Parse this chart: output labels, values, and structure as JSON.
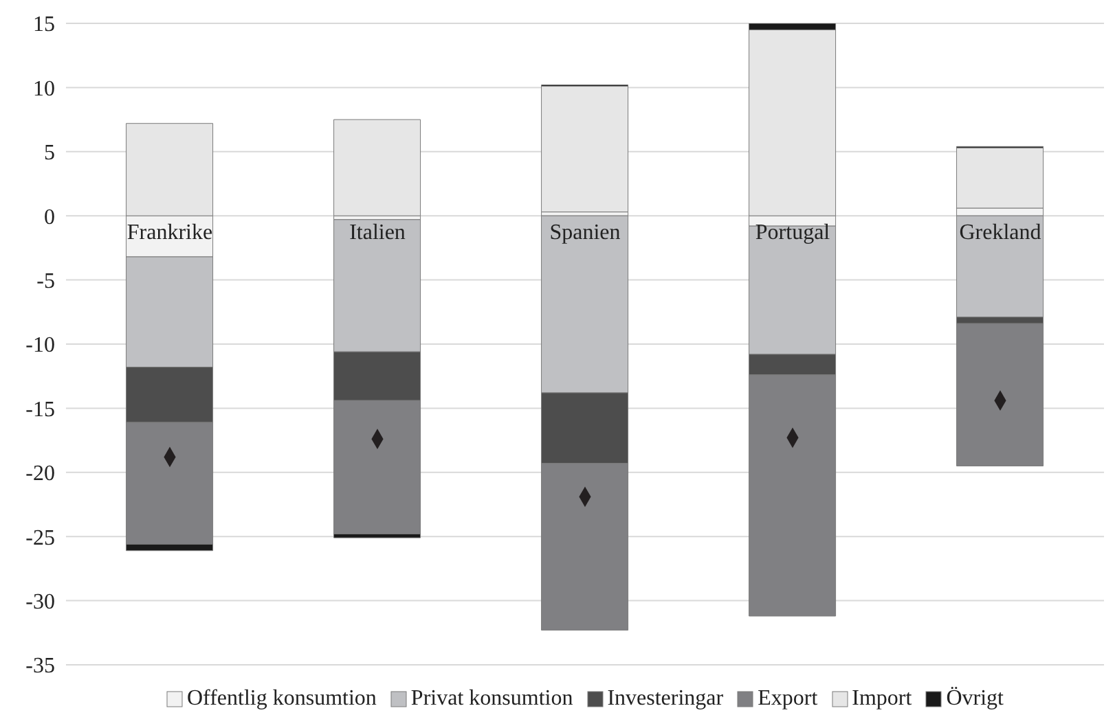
{
  "chart_data": {
    "type": "bar",
    "stacked": true,
    "categories": [
      "Frankrike",
      "Italien",
      "Spanien",
      "Portugal",
      "Grekland"
    ],
    "series": [
      {
        "name": "Offentlig konsumtion",
        "color": "#f2f2f2",
        "values": [
          -3.2,
          -0.3,
          0.3,
          -0.8,
          0.6
        ]
      },
      {
        "name": "Privat konsumtion",
        "color": "#bfc0c3",
        "values": [
          -8.6,
          -10.3,
          -13.8,
          -10.0,
          -7.9
        ]
      },
      {
        "name": "Investeringar",
        "color": "#4d4d4d",
        "values": [
          -4.3,
          -3.8,
          -5.5,
          -1.6,
          -0.5
        ]
      },
      {
        "name": "Export",
        "color": "#808083",
        "values": [
          -9.5,
          -10.4,
          -13.0,
          -18.8,
          -11.1
        ]
      },
      {
        "name": "Import",
        "color": "#e6e6e6",
        "values": [
          7.2,
          7.5,
          9.8,
          14.5,
          4.7
        ]
      },
      {
        "name": "Övrigt",
        "color": "#1a1a1a",
        "values": [
          -0.5,
          -0.3,
          0.1,
          0.5,
          0.1
        ]
      },
      {
        "type": "scatter",
        "color": "#231f20",
        "marker": "diamond",
        "values": [
          -18.8,
          -17.4,
          -21.9,
          -17.3,
          -14.4
        ]
      }
    ],
    "ylim": [
      -35,
      15
    ],
    "yticks": [
      -35,
      -30,
      -25,
      -20,
      -15,
      -10,
      -5,
      0,
      5,
      10,
      15
    ],
    "grid": "y",
    "legend": "bottom"
  }
}
